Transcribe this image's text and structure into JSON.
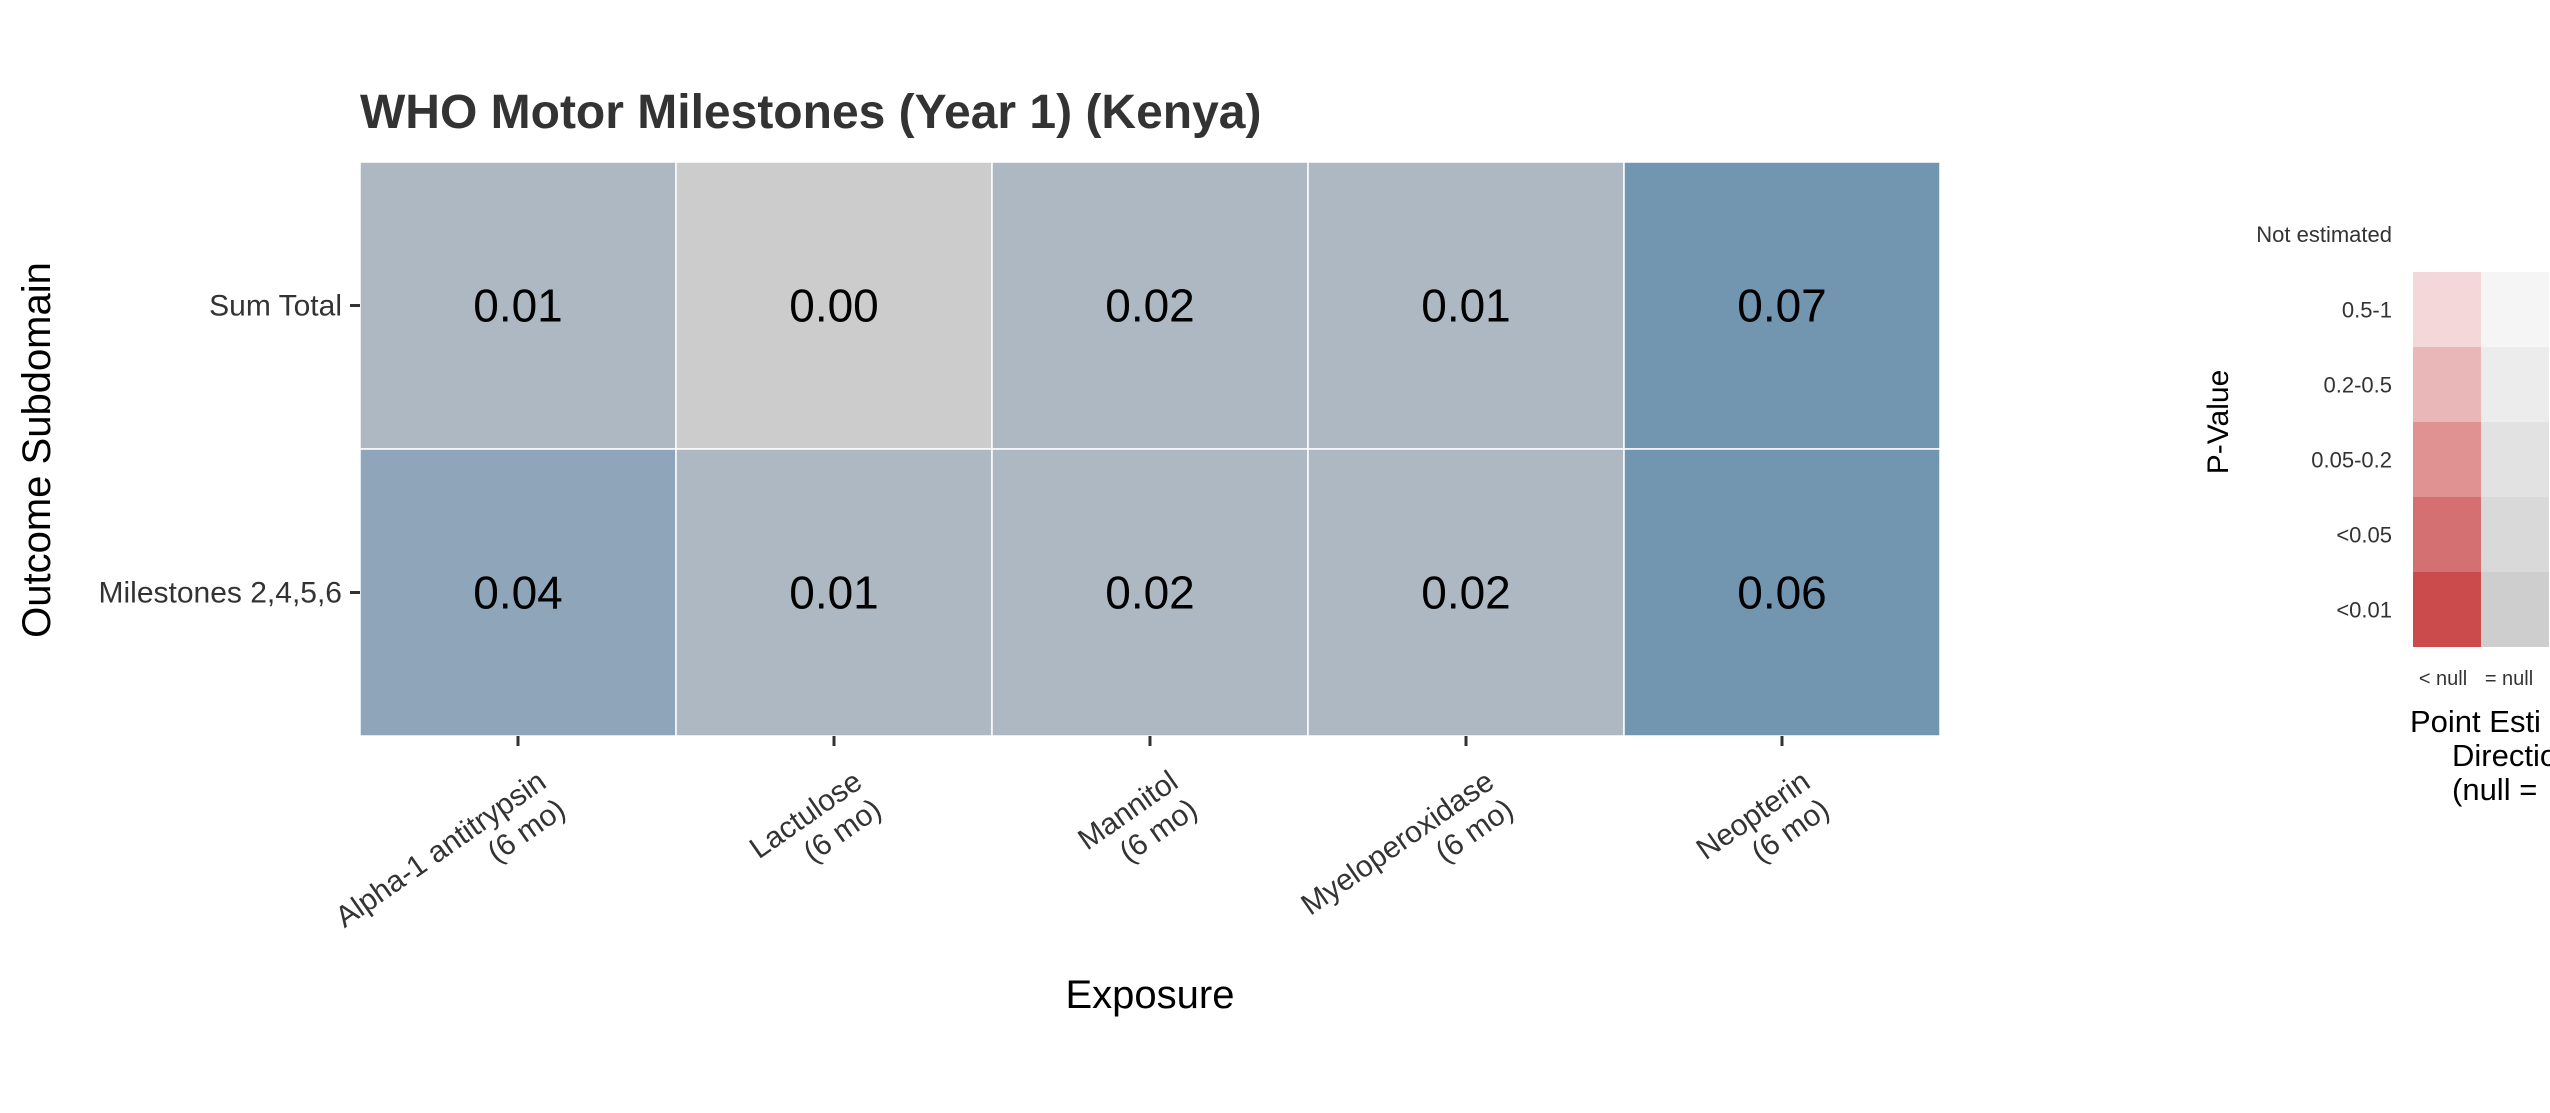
{
  "chart_data": {
    "type": "heatmap",
    "title": "WHO Motor Milestones (Year 1) (Kenya)",
    "xlabel": "Exposure",
    "ylabel": "Outcome Subdomain",
    "x_categories": [
      [
        "Alpha-1 antitrypsin",
        "(6 mo)"
      ],
      [
        "Lactulose",
        "(6 mo)"
      ],
      [
        "Mannitol",
        "(6 mo)"
      ],
      [
        "Myeloperoxidase",
        "(6 mo)"
      ],
      [
        "Neopterin",
        "(6 mo)"
      ]
    ],
    "y_categories": [
      "Sum Total",
      "Milestones 2,4,5,6"
    ],
    "cells": [
      [
        {
          "label": "0.01",
          "color": "#aeb8c2"
        },
        {
          "label": "0.00",
          "color": "#cccccc"
        },
        {
          "label": "0.02",
          "color": "#aeb8c2"
        },
        {
          "label": "0.01",
          "color": "#aeb8c2"
        },
        {
          "label": "0.07",
          "color": "#7396b0"
        }
      ],
      [
        {
          "label": "0.04",
          "color": "#8fa6ba"
        },
        {
          "label": "0.01",
          "color": "#aeb8c2"
        },
        {
          "label": "0.02",
          "color": "#aeb8c2"
        },
        {
          "label": "0.02",
          "color": "#aeb8c2"
        },
        {
          "label": "0.06",
          "color": "#7396b0"
        }
      ]
    ],
    "grid": false,
    "legend": {
      "placement": "right",
      "y_title": "P-Value",
      "x_title_lines": [
        "Point Esti",
        "Directio",
        "(null ="
      ],
      "not_estimated_label": "Not estimated",
      "rows": [
        {
          "label": "0.5-1",
          "colors": [
            "#f3d7d9",
            "#f5f5f5"
          ]
        },
        {
          "label": "0.2-0.5",
          "colors": [
            "#eab7b9",
            "#ececec"
          ]
        },
        {
          "label": "0.05-0.2",
          "colors": [
            "#e09192",
            "#e2e2e2"
          ]
        },
        {
          "label": "<0.05",
          "colors": [
            "#d57072",
            "#d9d9d9"
          ]
        },
        {
          "label": "<0.01",
          "colors": [
            "#cb4b4d",
            "#cecece"
          ]
        }
      ],
      "column_labels": [
        "< null",
        "= null"
      ]
    }
  }
}
